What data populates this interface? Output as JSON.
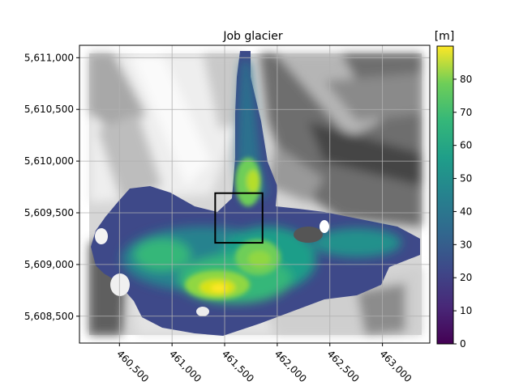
{
  "chart_data": {
    "type": "heatmap",
    "title": "Job glacier",
    "colorbar_label": "[m]",
    "colormap": "viridis",
    "value_range": [
      0,
      90
    ],
    "colorbar_ticks": [
      "0",
      "10",
      "20",
      "30",
      "40",
      "50",
      "60",
      "70",
      "80"
    ],
    "colorbar_tick_values": [
      0,
      10,
      20,
      30,
      40,
      50,
      60,
      70,
      80
    ],
    "x_ticks": [
      "460,500",
      "461,000",
      "461,500",
      "462,000",
      "462,500",
      "463,000"
    ],
    "x_tick_values": [
      460500,
      461000,
      461500,
      462000,
      462500,
      463000
    ],
    "y_ticks": [
      "5,611,000",
      "5,610,500",
      "5,610,000",
      "5,609,500",
      "5,609,000",
      "5,608,500"
    ],
    "y_tick_values": [
      5611000,
      5610500,
      5610000,
      5609500,
      5609000,
      5608500
    ],
    "xlim": [
      460120,
      463450
    ],
    "ylim": [
      5608240,
      5611120
    ],
    "grid": true,
    "background": "grayscale hillshade",
    "highlight_box": {
      "x0": 461410,
      "x1": 461860,
      "y0": 5609210,
      "y1": 5609690,
      "color": "#000000"
    },
    "thickness_peaks": [
      {
        "x": 461450,
        "y": 5608800,
        "value": 85
      },
      {
        "x": 461620,
        "y": 5609050,
        "value": 72
      },
      {
        "x": 461760,
        "y": 5609500,
        "value": 70
      },
      {
        "x": 461850,
        "y": 5609800,
        "value": 78
      },
      {
        "x": 461000,
        "y": 5609100,
        "value": 62
      }
    ]
  }
}
